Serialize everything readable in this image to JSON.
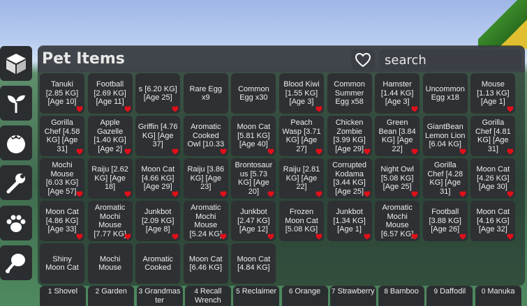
{
  "panel": {
    "title": "Pet Items",
    "search_placeholder": "search"
  },
  "sidebar": [
    "box",
    "seedling",
    "tomato",
    "wrench",
    "paw",
    "drumstick"
  ],
  "items": [
    {
      "label": "Tanuki [2.85 KG] [Age 10]",
      "fav": true
    },
    {
      "label": "Football [2.69 KG] [Age 11]",
      "fav": true
    },
    {
      "label": "s [6.20 KG] [Age 25]",
      "fav": true
    },
    {
      "label": "Rare Egg x9",
      "fav": false
    },
    {
      "label": "Common Egg x30",
      "fav": false
    },
    {
      "label": "Blood Kiwi [1.55 KG] [Age 3]",
      "fav": true
    },
    {
      "label": "Common Summer Egg x58",
      "fav": false
    },
    {
      "label": "Hamster [1.44 KG] [Age 3]",
      "fav": true
    },
    {
      "label": "Uncommon Egg x18",
      "fav": false
    },
    {
      "label": "Mouse [1.13 KG] [Age 1]",
      "fav": true
    },
    {
      "label": "Gorilla Chef [4.58 KG] [Age 31]",
      "fav": true
    },
    {
      "label": "Apple Gazelle [1.40 KG] [Age 2]",
      "fav": true
    },
    {
      "label": "Griffin [4.76 KG] [Age 37]",
      "fav": true
    },
    {
      "label": "Aromatic Cooked Owl [10.33",
      "fav": true
    },
    {
      "label": "Moon Cat [5.81 KG] [Age 40]",
      "fav": true
    },
    {
      "label": "Peach Wasp [3.71 KG] [Age 27]",
      "fav": true
    },
    {
      "label": "Chicken Zombie [3.99 KG] [Age 29]",
      "fav": true
    },
    {
      "label": "Green Bean [3.84 KG] [Age 22]",
      "fav": true
    },
    {
      "label": "GiantBean Lemon Lion [6.04 KG]",
      "fav": true
    },
    {
      "label": "Gorilla Chef [4.81 KG] [Age 31]",
      "fav": true
    },
    {
      "label": "Mochi Mouse [6.03 KG] [Age 57]",
      "fav": true
    },
    {
      "label": "Raiju [2.62 KG] [Age 18]",
      "fav": true
    },
    {
      "label": "Moon Cat [4.66 KG] [Age 29]",
      "fav": true
    },
    {
      "label": "Raiju [3.86 KG] [Age 23]",
      "fav": true
    },
    {
      "label": "Brontosaurus [5.73 KG] [Age 20]",
      "fav": true
    },
    {
      "label": "Raiju [2.81 KG] [Age 22]",
      "fav": true
    },
    {
      "label": "Corrupted Kodama [3.44 KG] [Age 25]",
      "fav": true
    },
    {
      "label": "Night Owl [5.08 KG] [Age 25]",
      "fav": true
    },
    {
      "label": "Gorilla Chef [4.28 KG] [Age 31]",
      "fav": true
    },
    {
      "label": "Moon Cat [4.26 KG] [Age 30]",
      "fav": true
    },
    {
      "label": "Moon Cat [4.86 KG] [Age 33]",
      "fav": true
    },
    {
      "label": "Aromatic Mochi Mouse [7.77 KG]",
      "fav": true
    },
    {
      "label": "Junkbot [2.09 KG] [Age 8]",
      "fav": true
    },
    {
      "label": "Aromatic Mochi Mouse [5.24 KG]",
      "fav": true
    },
    {
      "label": "Junkbot [2.47 KG] [Age 12]",
      "fav": true
    },
    {
      "label": "Frozen Moon Cat [5.08 KG]",
      "fav": true
    },
    {
      "label": "Junkbot [1.34 KG] [Age 1]",
      "fav": true
    },
    {
      "label": "Aromatic Mochi Mouse [6.57 KG]",
      "fav": true
    },
    {
      "label": "Football [3.88 KG] [Age 26]",
      "fav": true
    },
    {
      "label": "Moon Cat [4.16 KG] [Age 32]",
      "fav": true
    },
    {
      "label": "Shiny Moon Cat",
      "fav": false
    },
    {
      "label": "Mochi Mouse",
      "fav": false
    },
    {
      "label": "Aromatic Cooked",
      "fav": false
    },
    {
      "label": "Moon Cat [6.46 KG]",
      "fav": false
    },
    {
      "label": "Moon Cat [4.84 KG]",
      "fav": false
    }
  ],
  "hotbar": [
    {
      "key": "1",
      "label": "Shovel"
    },
    {
      "key": "2",
      "label": "Garden"
    },
    {
      "key": "3",
      "label": "Grandmaster"
    },
    {
      "key": "4",
      "label": "Recall Wrench"
    },
    {
      "key": "5",
      "label": "Reclaimer"
    },
    {
      "key": "6",
      "label": "Orange"
    },
    {
      "key": "7",
      "label": "Strawberry"
    },
    {
      "key": "8",
      "label": "Bamboo"
    },
    {
      "key": "9",
      "label": "Daffodil"
    },
    {
      "key": "0",
      "label": "Manuka"
    }
  ],
  "colors": {
    "heart": "#e0101a",
    "panel": "#2e3033"
  }
}
